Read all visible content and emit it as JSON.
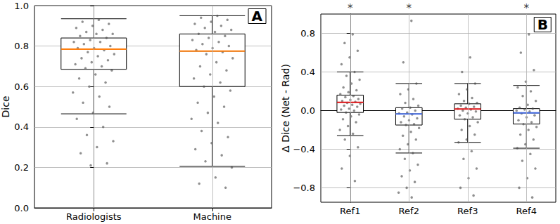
{
  "chart_data": [
    {
      "type": "boxplot",
      "title": "A",
      "ylabel": "Dice",
      "categories": [
        "Radiologists",
        "Machine"
      ],
      "boxes": [
        [
          0.465,
          0.685,
          0.785,
          0.84,
          0.935
        ],
        [
          0.205,
          0.6,
          0.775,
          0.86,
          0.95
        ]
      ],
      "colors": [
        "#ff7f0e",
        "#ff7f0e"
      ],
      "points": [
        [
          0.93,
          0.92,
          0.91,
          0.9,
          0.89,
          0.88,
          0.87,
          0.86,
          0.86,
          0.85,
          0.84,
          0.83,
          0.82,
          0.82,
          0.81,
          0.8,
          0.79,
          0.79,
          0.78,
          0.77,
          0.76,
          0.75,
          0.74,
          0.73,
          0.72,
          0.71,
          0.7,
          0.69,
          0.68,
          0.66,
          0.64,
          0.62,
          0.6,
          0.57,
          0.55,
          0.52,
          0.5,
          0.47,
          0.44,
          0.4,
          0.36,
          0.33,
          0.3,
          0.27,
          0.22,
          0.21
        ],
        [
          0.95,
          0.94,
          0.93,
          0.92,
          0.91,
          0.9,
          0.89,
          0.88,
          0.87,
          0.86,
          0.85,
          0.84,
          0.83,
          0.82,
          0.81,
          0.8,
          0.79,
          0.78,
          0.77,
          0.76,
          0.74,
          0.72,
          0.7,
          0.68,
          0.66,
          0.64,
          0.62,
          0.6,
          0.58,
          0.55,
          0.52,
          0.5,
          0.47,
          0.44,
          0.42,
          0.38,
          0.35,
          0.32,
          0.29,
          0.26,
          0.23,
          0.2,
          0.15,
          0.12,
          0.1
        ]
      ],
      "ylim": [
        0,
        1
      ],
      "yticks": [
        {
          "value": 0,
          "label": "0.0"
        },
        {
          "value": 0.2,
          "label": "0.2"
        },
        {
          "value": 0.4,
          "label": "0.4"
        },
        {
          "value": 0.6,
          "label": "0.6"
        },
        {
          "value": 0.8,
          "label": "0.8"
        },
        {
          "value": 1,
          "label": "1.0"
        }
      ],
      "grid": true
    },
    {
      "type": "boxplot",
      "title": "B",
      "ylabel": "Δ Dice (Net - Rad)",
      "categories": [
        "Ref1",
        "Ref2",
        "Ref3",
        "Ref4"
      ],
      "boxes": [
        [
          -0.26,
          -0.02,
          0.085,
          0.16,
          0.4
        ],
        [
          -0.44,
          -0.15,
          -0.035,
          0.03,
          0.28
        ],
        [
          -0.33,
          -0.09,
          0.015,
          0.07,
          0.28
        ],
        [
          -0.39,
          -0.14,
          -0.025,
          0.02,
          0.26
        ]
      ],
      "colors": [
        "#e41a1c",
        "#4169e1",
        "#e41a1c",
        "#4169e1"
      ],
      "points": [
        [
          0.79,
          0.7,
          0.62,
          0.55,
          0.48,
          0.4,
          0.36,
          0.32,
          0.28,
          0.24,
          0.21,
          0.19,
          0.17,
          0.15,
          0.14,
          0.12,
          0.11,
          0.1,
          0.09,
          0.08,
          0.07,
          0.06,
          0.05,
          0.04,
          0.02,
          0.01,
          0,
          -0.02,
          -0.04,
          -0.06,
          -0.09,
          -0.12,
          -0.16,
          -0.2,
          -0.24,
          -0.3,
          -0.38,
          -0.47,
          -0.6,
          -0.73
        ],
        [
          0.93,
          0.5,
          0.28,
          0.22,
          0.17,
          0.12,
          0.08,
          0.05,
          0.03,
          0.02,
          0,
          -0.02,
          -0.03,
          -0.04,
          -0.06,
          -0.08,
          -0.1,
          -0.12,
          -0.14,
          -0.15,
          -0.18,
          -0.22,
          -0.26,
          -0.3,
          -0.35,
          -0.4,
          -0.44,
          -0.5,
          -0.56,
          -0.62,
          -0.68,
          -0.74,
          -0.8,
          -0.85,
          -0.9
        ],
        [
          0.55,
          0.4,
          0.28,
          0.22,
          0.17,
          0.13,
          0.1,
          0.08,
          0.07,
          0.05,
          0.04,
          0.03,
          0.02,
          0.01,
          0,
          -0.01,
          -0.03,
          -0.05,
          -0.07,
          -0.09,
          -0.12,
          -0.16,
          -0.2,
          -0.25,
          -0.3,
          -0.33,
          -0.42,
          -0.5,
          -0.6,
          -0.7,
          -0.8,
          -0.88
        ],
        [
          0.79,
          0.6,
          0.42,
          0.3,
          0.24,
          0.2,
          0.15,
          0.1,
          0.06,
          0.03,
          0.02,
          0.01,
          0,
          -0.01,
          -0.03,
          -0.05,
          -0.07,
          -0.1,
          -0.12,
          -0.14,
          -0.17,
          -0.2,
          -0.25,
          -0.3,
          -0.35,
          -0.39,
          -0.45,
          -0.52,
          -0.6,
          -0.7,
          -0.8,
          -0.9
        ]
      ],
      "annotations": [
        "*",
        "*",
        null,
        "*"
      ],
      "ylim": [
        -0.95,
        1
      ],
      "yticks": [
        {
          "value": -0.8,
          "label": "−0.8"
        },
        {
          "value": -0.4,
          "label": "−0.4"
        },
        {
          "value": 0,
          "label": "0.0"
        },
        {
          "value": 0.4,
          "label": "0.4"
        },
        {
          "value": 0.8,
          "label": "0.8"
        }
      ],
      "grid": true
    }
  ]
}
